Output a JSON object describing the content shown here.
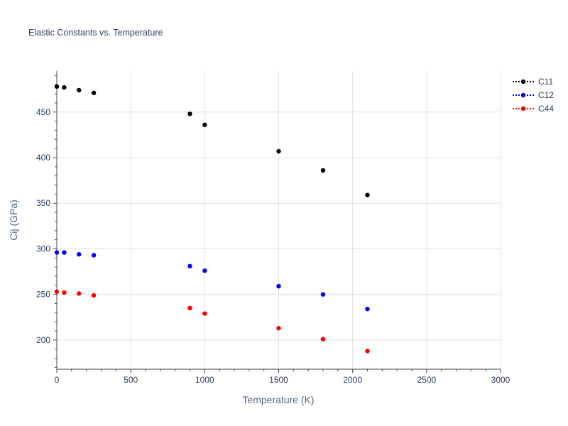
{
  "chart_data": {
    "type": "scatter",
    "title": "Elastic Constants vs. Temperature",
    "xlabel": "Temperature (K)",
    "ylabel": "Cij (GPa)",
    "xlim": [
      0,
      3000
    ],
    "ylim": [
      168,
      495
    ],
    "xticks": [
      0,
      500,
      1000,
      1500,
      2000,
      2500,
      3000
    ],
    "yticks": [
      200,
      250,
      300,
      350,
      400,
      450
    ],
    "grid": true,
    "legend_position": "top-right",
    "x": [
      0,
      50,
      150,
      250,
      900,
      1000,
      1500,
      1800,
      2100
    ],
    "series": [
      {
        "name": "C11",
        "color": "#000000",
        "values": [
          478,
          477,
          474,
          471,
          448,
          436,
          407,
          386,
          359
        ]
      },
      {
        "name": "C12",
        "color": "#0000ff",
        "values": [
          296,
          296,
          294,
          293,
          281,
          276,
          259,
          250,
          234
        ]
      },
      {
        "name": "C44",
        "color": "#ff0000",
        "values": [
          253,
          252,
          251,
          249,
          235,
          229,
          213,
          201,
          188
        ]
      }
    ]
  }
}
